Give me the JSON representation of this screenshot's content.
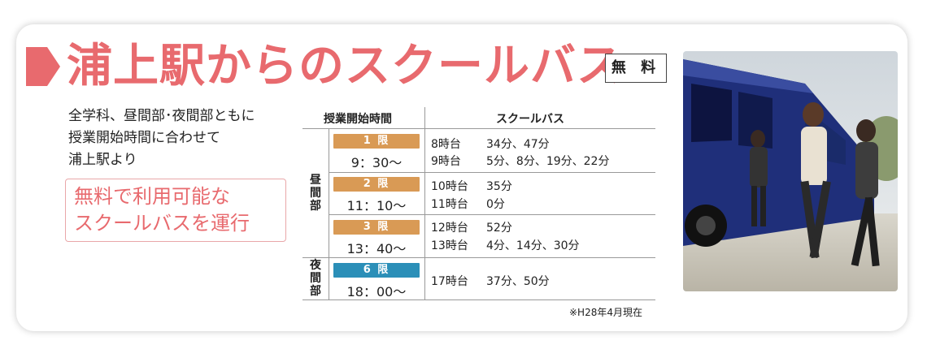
{
  "title": "浦上駅からのスクールバス",
  "badge": "無 料",
  "description": [
    "全学科、昼間部･夜間部ともに",
    "授業開始時間に合わせて",
    "浦上駅より"
  ],
  "highlight": [
    "無料で利用可能な",
    "スクールバスを運行"
  ],
  "table": {
    "header_left": "授業開始時間",
    "header_right": "スクールバス",
    "group_day": "昼間部",
    "group_night": "夜間部",
    "periods": [
      {
        "label": "1 限",
        "time": "9：30〜",
        "buses": [
          {
            "hour": "8時台",
            "mins": "34分、47分"
          },
          {
            "hour": "9時台",
            "mins": "5分、8分、19分、22分"
          }
        ]
      },
      {
        "label": "2 限",
        "time": "11：10〜",
        "buses": [
          {
            "hour": "10時台",
            "mins": "35分"
          },
          {
            "hour": "11時台",
            "mins": "0分"
          }
        ]
      },
      {
        "label": "3 限",
        "time": "13：40〜",
        "buses": [
          {
            "hour": "12時台",
            "mins": "52分"
          },
          {
            "hour": "13時台",
            "mins": "4分、14分、30分"
          }
        ]
      },
      {
        "label": "6 限",
        "time": "18：00〜",
        "buses": [
          {
            "hour": "17時台",
            "mins": "37分、50分"
          }
        ]
      }
    ]
  },
  "note": "※H28年4月現在",
  "colors": {
    "accent": "#e86a6e",
    "day_period": "#d99a55",
    "night_period": "#2b8fb8"
  }
}
